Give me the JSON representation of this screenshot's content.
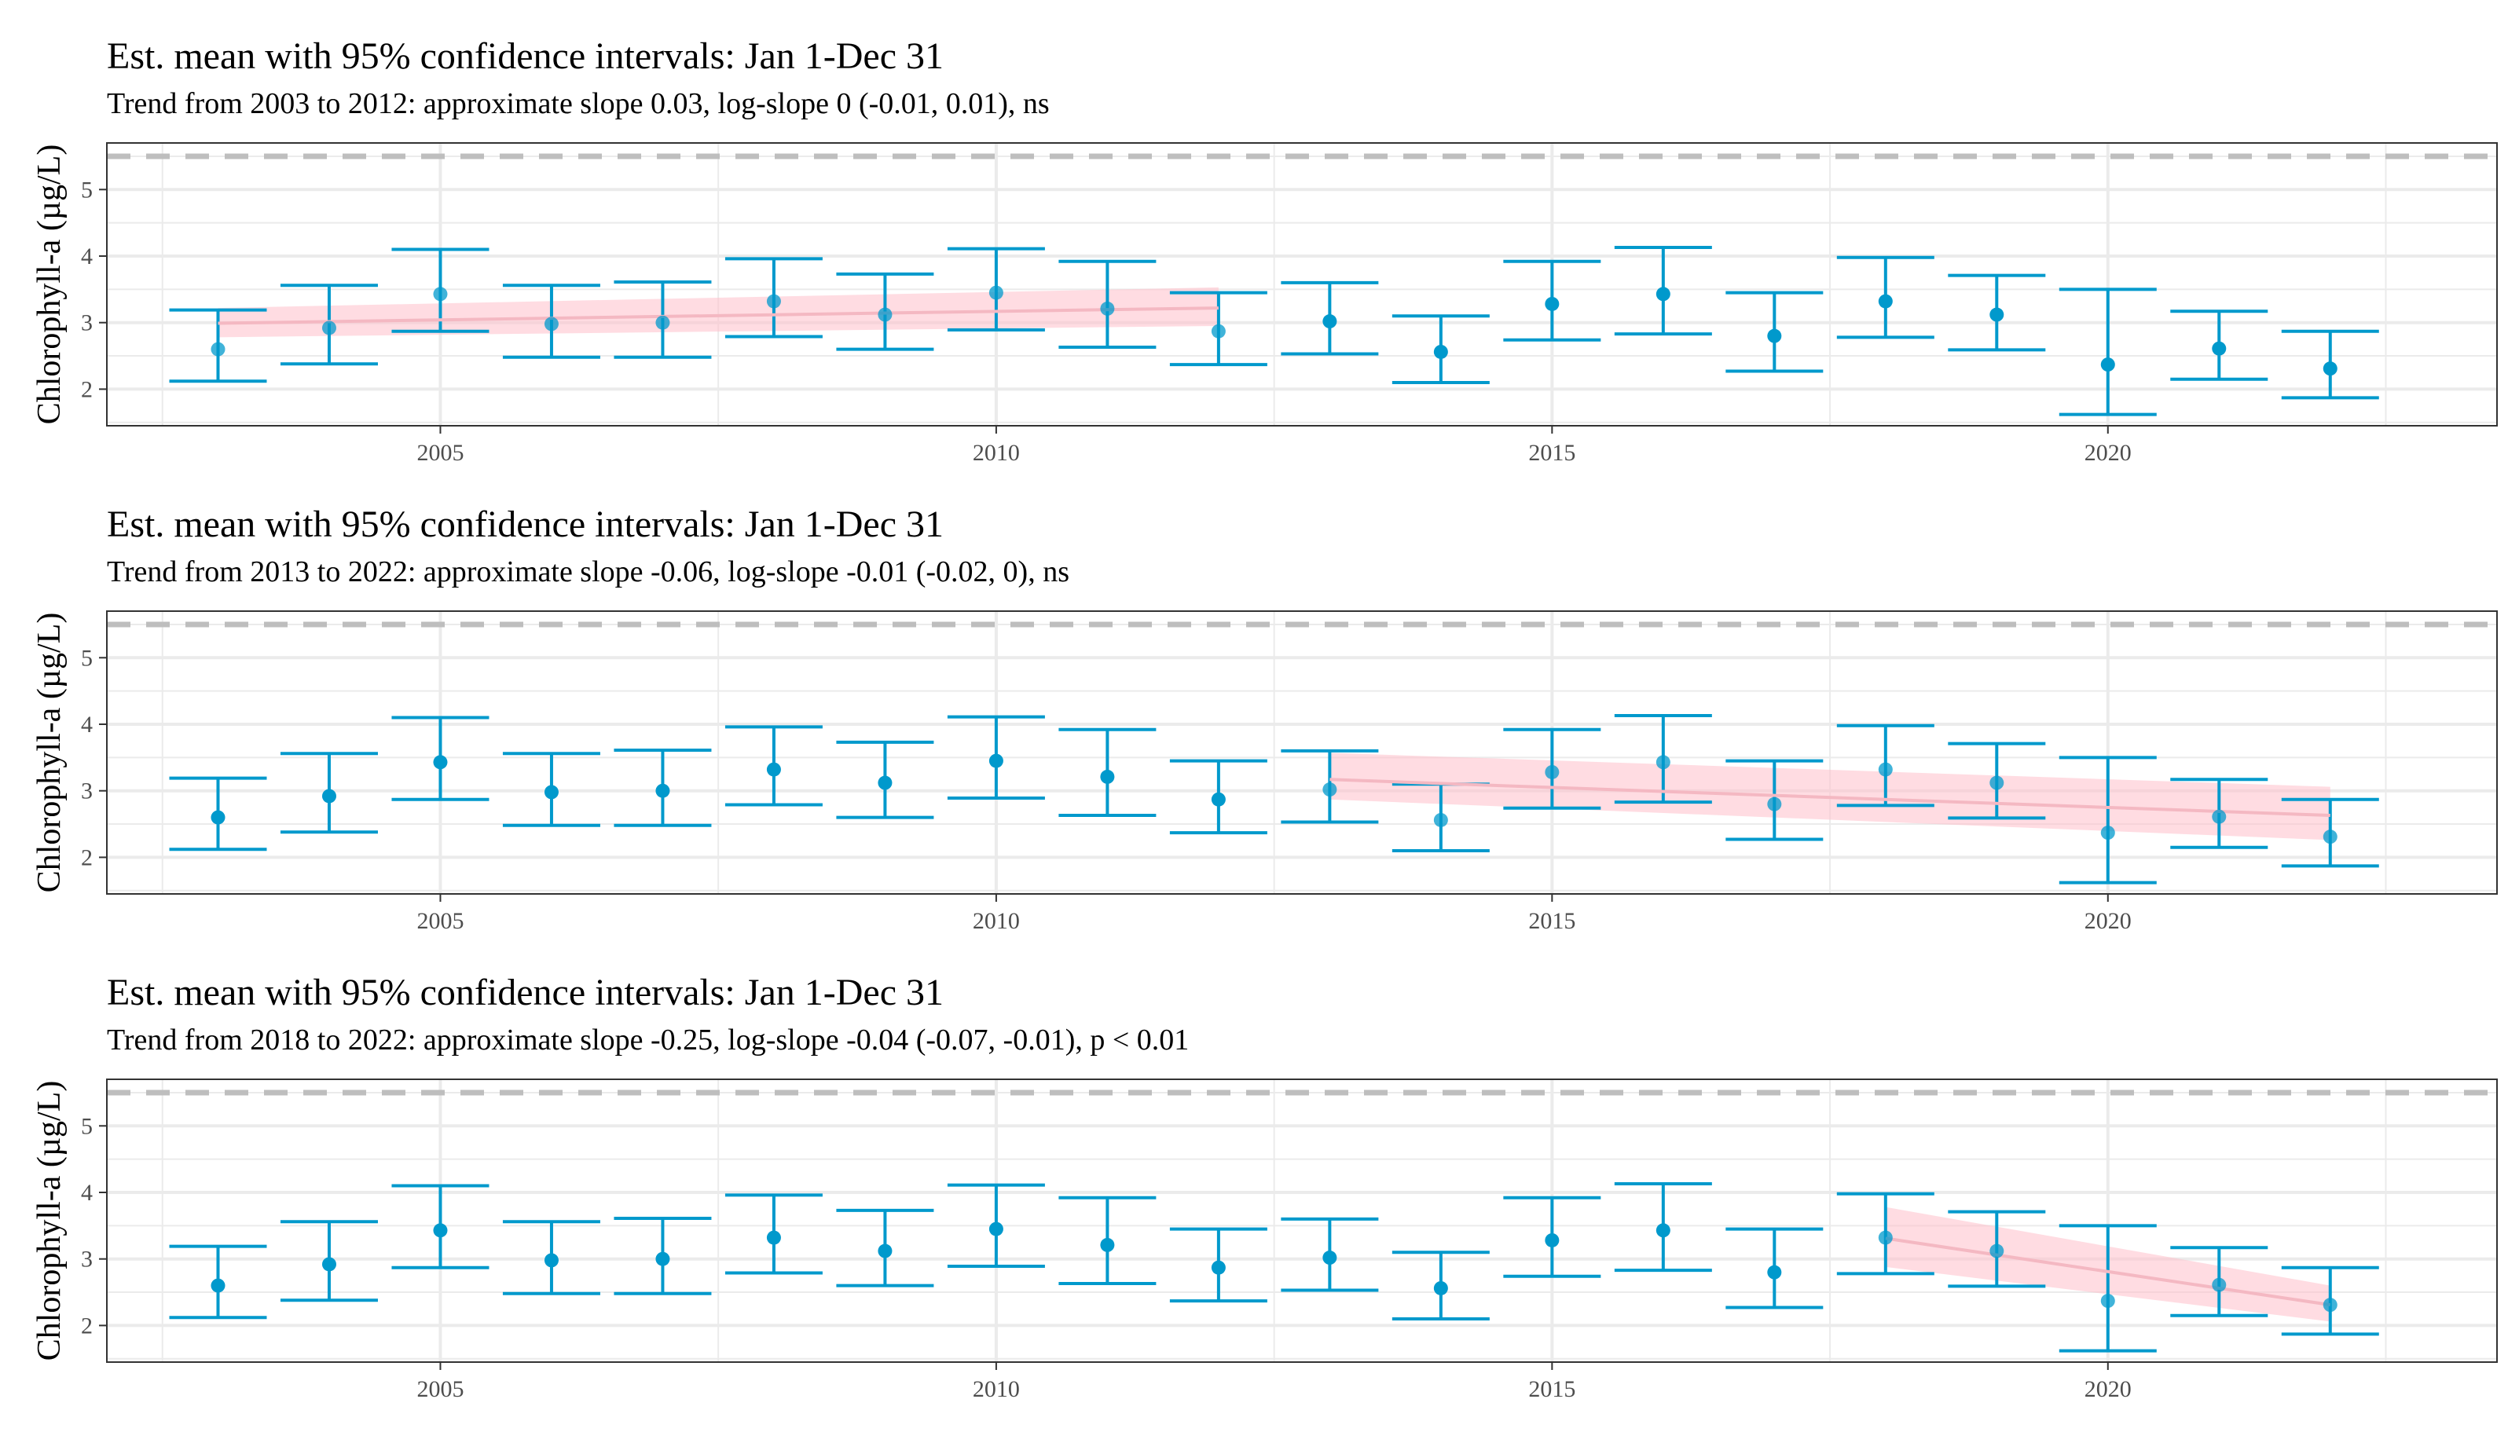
{
  "colors": {
    "point": "#0099CC",
    "errorbar": "#0099CC",
    "trend_line": "#F4B8C2",
    "trend_band": "#FFC0CB",
    "reference_line": "#BEBEBE",
    "grid": "#EBEBEB",
    "panel_border": "#333333"
  },
  "chart_data": [
    {
      "type": "scatter",
      "title": "Est. mean with 95% confidence intervals: Jan 1-Dec 31",
      "subtitle": "Trend from 2003 to 2012: approximate slope 0.03, log-slope 0 (-0.01, 0.01), ns",
      "xlabel": "",
      "ylabel": "Chlorophyll-a (µg/L)",
      "xlim": [
        2002.0,
        2023.5
      ],
      "ylim": [
        1.45,
        5.7
      ],
      "x_ticks": [
        2005,
        2010,
        2015,
        2020
      ],
      "y_ticks": [
        2,
        3,
        4,
        5
      ],
      "grid": true,
      "reference_line": 5.5,
      "series": [
        {
          "x": [
            2003,
            2004,
            2005,
            2006,
            2007,
            2008,
            2009,
            2010,
            2011,
            2012,
            2013,
            2014,
            2015,
            2016,
            2017,
            2018,
            2019,
            2020,
            2021,
            2022
          ],
          "mean": [
            2.6,
            2.92,
            3.43,
            2.98,
            3.0,
            3.32,
            3.12,
            3.45,
            3.21,
            2.87,
            3.02,
            2.56,
            3.28,
            3.43,
            2.8,
            3.32,
            3.12,
            2.37,
            2.61,
            2.31
          ],
          "lower": [
            2.12,
            2.38,
            2.87,
            2.48,
            2.48,
            2.79,
            2.6,
            2.89,
            2.63,
            2.37,
            2.53,
            2.1,
            2.74,
            2.83,
            2.27,
            2.78,
            2.59,
            1.62,
            2.15,
            1.87
          ],
          "upper": [
            3.19,
            3.56,
            4.1,
            3.56,
            3.61,
            3.96,
            3.73,
            4.11,
            3.92,
            3.45,
            3.6,
            3.1,
            3.92,
            4.13,
            3.45,
            3.98,
            3.71,
            3.5,
            3.17,
            2.87
          ]
        }
      ],
      "trend": {
        "x_start": 2003,
        "x_end": 2012,
        "y_start": 2.99,
        "y_end": 3.22,
        "band_lower_start": 2.78,
        "band_lower_end": 2.95,
        "band_upper_start": 3.22,
        "band_upper_end": 3.53
      }
    },
    {
      "type": "scatter",
      "title": "Est. mean with 95% confidence intervals: Jan 1-Dec 31",
      "subtitle": "Trend from 2013 to 2022: approximate slope -0.06, log-slope -0.01 (-0.02, 0), ns",
      "xlabel": "",
      "ylabel": "Chlorophyll-a (µg/L)",
      "xlim": [
        2002.0,
        2023.5
      ],
      "ylim": [
        1.45,
        5.7
      ],
      "x_ticks": [
        2005,
        2010,
        2015,
        2020
      ],
      "y_ticks": [
        2,
        3,
        4,
        5
      ],
      "grid": true,
      "reference_line": 5.5,
      "series": [
        {
          "x": [
            2003,
            2004,
            2005,
            2006,
            2007,
            2008,
            2009,
            2010,
            2011,
            2012,
            2013,
            2014,
            2015,
            2016,
            2017,
            2018,
            2019,
            2020,
            2021,
            2022
          ],
          "mean": [
            2.6,
            2.92,
            3.43,
            2.98,
            3.0,
            3.32,
            3.12,
            3.45,
            3.21,
            2.87,
            3.02,
            2.56,
            3.28,
            3.43,
            2.8,
            3.32,
            3.12,
            2.37,
            2.61,
            2.31
          ],
          "lower": [
            2.12,
            2.38,
            2.87,
            2.48,
            2.48,
            2.79,
            2.6,
            2.89,
            2.63,
            2.37,
            2.53,
            2.1,
            2.74,
            2.83,
            2.27,
            2.78,
            2.59,
            1.62,
            2.15,
            1.87
          ],
          "upper": [
            3.19,
            3.56,
            4.1,
            3.56,
            3.61,
            3.96,
            3.73,
            4.11,
            3.92,
            3.45,
            3.6,
            3.1,
            3.92,
            4.13,
            3.45,
            3.98,
            3.71,
            3.5,
            3.17,
            2.87
          ]
        }
      ],
      "trend": {
        "x_start": 2013,
        "x_end": 2022,
        "y_start": 3.17,
        "y_end": 2.63,
        "band_lower_start": 2.87,
        "band_lower_end": 2.26,
        "band_upper_start": 3.57,
        "band_upper_end": 3.06
      }
    },
    {
      "type": "scatter",
      "title": "Est. mean with 95% confidence intervals: Jan 1-Dec 31",
      "subtitle": "Trend from 2018 to 2022: approximate slope -0.25, log-slope -0.04 (-0.07, -0.01), p < 0.01",
      "xlabel": "",
      "ylabel": "Chlorophyll-a (µg/L)",
      "xlim": [
        2002.0,
        2023.5
      ],
      "ylim": [
        1.45,
        5.7
      ],
      "x_ticks": [
        2005,
        2010,
        2015,
        2020
      ],
      "y_ticks": [
        2,
        3,
        4,
        5
      ],
      "grid": true,
      "reference_line": 5.5,
      "series": [
        {
          "x": [
            2003,
            2004,
            2005,
            2006,
            2007,
            2008,
            2009,
            2010,
            2011,
            2012,
            2013,
            2014,
            2015,
            2016,
            2017,
            2018,
            2019,
            2020,
            2021,
            2022
          ],
          "mean": [
            2.6,
            2.92,
            3.43,
            2.98,
            3.0,
            3.32,
            3.12,
            3.45,
            3.21,
            2.87,
            3.02,
            2.56,
            3.28,
            3.43,
            2.8,
            3.32,
            3.12,
            2.37,
            2.61,
            2.31
          ],
          "lower": [
            2.12,
            2.38,
            2.87,
            2.48,
            2.48,
            2.79,
            2.6,
            2.89,
            2.63,
            2.37,
            2.53,
            2.1,
            2.74,
            2.83,
            2.27,
            2.78,
            2.59,
            1.62,
            2.15,
            1.87
          ],
          "upper": [
            3.19,
            3.56,
            4.1,
            3.56,
            3.61,
            3.96,
            3.73,
            4.11,
            3.92,
            3.45,
            3.6,
            3.1,
            3.92,
            4.13,
            3.45,
            3.98,
            3.71,
            3.5,
            3.17,
            2.87
          ]
        }
      ],
      "trend": {
        "x_start": 2018,
        "x_end": 2022,
        "y_start": 3.31,
        "y_end": 2.31,
        "band_lower_start": 2.88,
        "band_lower_end": 2.06,
        "band_upper_start": 3.78,
        "band_upper_end": 2.6
      }
    }
  ]
}
